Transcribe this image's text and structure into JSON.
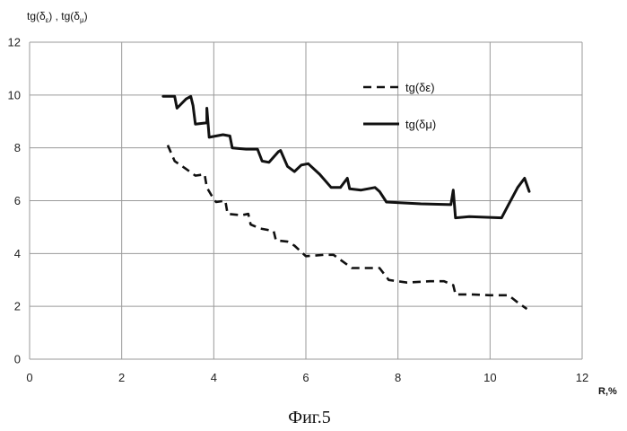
{
  "chart_data": {
    "type": "line",
    "ylabel": "tg(δε) , tg(δμ)",
    "ylabel_parts": {
      "base1": "tg(δ",
      "sub1": "ε",
      "sep": ") , tg(δ",
      "sub2": "μ",
      "end": ")"
    },
    "xlabel": "R,%",
    "caption": "Фиг.5",
    "xlim": [
      0,
      12
    ],
    "ylim": [
      0,
      12
    ],
    "xticks": [
      "0",
      "2",
      "4",
      "6",
      "8",
      "10",
      "12"
    ],
    "yticks": [
      "0",
      "2",
      "4",
      "6",
      "8",
      "10",
      "12"
    ],
    "grid": true,
    "legend_position": "right, upper part",
    "series": [
      {
        "name": "tg(δε)",
        "line_style": "dashed",
        "color": "#111111",
        "points": [
          [
            3.0,
            8.1
          ],
          [
            3.15,
            7.5
          ],
          [
            3.4,
            7.2
          ],
          [
            3.6,
            6.95
          ],
          [
            3.8,
            7.0
          ],
          [
            3.85,
            6.5
          ],
          [
            3.95,
            6.2
          ],
          [
            4.05,
            5.95
          ],
          [
            4.25,
            6.0
          ],
          [
            4.3,
            5.5
          ],
          [
            4.6,
            5.45
          ],
          [
            4.75,
            5.5
          ],
          [
            4.8,
            5.1
          ],
          [
            5.0,
            4.95
          ],
          [
            5.3,
            4.85
          ],
          [
            5.35,
            4.5
          ],
          [
            5.6,
            4.45
          ],
          [
            5.75,
            4.3
          ],
          [
            6.0,
            3.9
          ],
          [
            6.4,
            3.95
          ],
          [
            6.6,
            3.95
          ],
          [
            6.8,
            3.7
          ],
          [
            7.0,
            3.45
          ],
          [
            7.6,
            3.45
          ],
          [
            7.8,
            3.0
          ],
          [
            8.2,
            2.9
          ],
          [
            8.7,
            2.95
          ],
          [
            9.0,
            2.95
          ],
          [
            9.2,
            2.8
          ],
          [
            9.25,
            2.45
          ],
          [
            9.6,
            2.45
          ],
          [
            10.0,
            2.42
          ],
          [
            10.4,
            2.42
          ],
          [
            10.6,
            2.15
          ],
          [
            10.8,
            1.9
          ]
        ]
      },
      {
        "name": "tg(δμ)",
        "line_style": "solid",
        "color": "#111111",
        "points": [
          [
            2.9,
            9.95
          ],
          [
            3.15,
            9.95
          ],
          [
            3.2,
            9.5
          ],
          [
            3.4,
            9.85
          ],
          [
            3.5,
            9.95
          ],
          [
            3.55,
            9.6
          ],
          [
            3.6,
            8.9
          ],
          [
            3.85,
            8.95
          ],
          [
            3.85,
            9.5
          ],
          [
            3.9,
            8.4
          ],
          [
            4.2,
            8.5
          ],
          [
            4.35,
            8.45
          ],
          [
            4.4,
            8.0
          ],
          [
            4.7,
            7.95
          ],
          [
            4.95,
            7.95
          ],
          [
            5.05,
            7.5
          ],
          [
            5.2,
            7.45
          ],
          [
            5.4,
            7.85
          ],
          [
            5.45,
            7.9
          ],
          [
            5.6,
            7.3
          ],
          [
            5.75,
            7.1
          ],
          [
            5.9,
            7.35
          ],
          [
            6.05,
            7.4
          ],
          [
            6.3,
            7.0
          ],
          [
            6.55,
            6.5
          ],
          [
            6.75,
            6.5
          ],
          [
            6.9,
            6.85
          ],
          [
            6.95,
            6.45
          ],
          [
            7.2,
            6.4
          ],
          [
            7.5,
            6.5
          ],
          [
            7.6,
            6.35
          ],
          [
            7.75,
            5.95
          ],
          [
            8.5,
            5.88
          ],
          [
            9.15,
            5.85
          ],
          [
            9.2,
            6.4
          ],
          [
            9.25,
            5.35
          ],
          [
            9.55,
            5.4
          ],
          [
            10.25,
            5.35
          ],
          [
            10.4,
            5.85
          ],
          [
            10.6,
            6.5
          ],
          [
            10.75,
            6.85
          ],
          [
            10.85,
            6.35
          ]
        ]
      }
    ]
  },
  "colors": {
    "grid": "#9a9a9a",
    "line": "#111111"
  }
}
